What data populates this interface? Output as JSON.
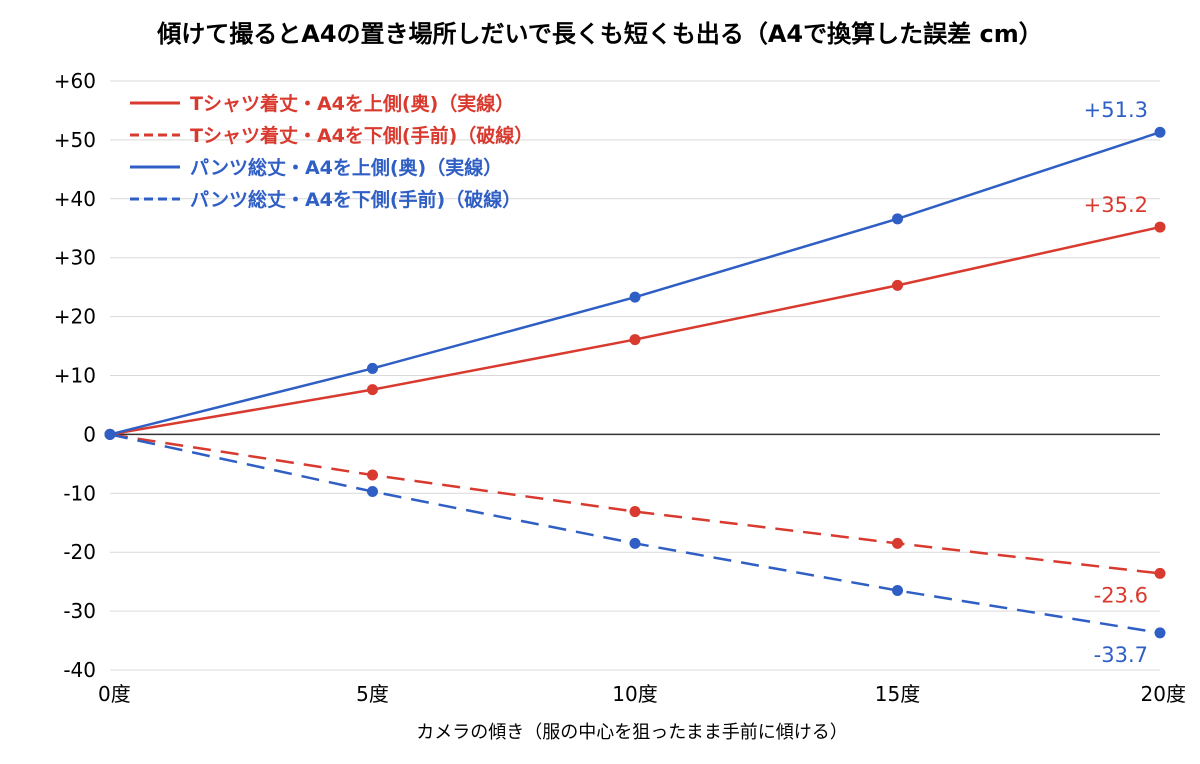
{
  "chart_data": {
    "type": "line",
    "title": "傾けて撮るとA4の置き場所しだいで長くも短くも出る（A4で換算した誤差 cm）",
    "xlabel": "カメラの傾き（服の中心を狙ったまま手前に傾ける）",
    "ylabel": "",
    "x": [
      0,
      5,
      10,
      15,
      20
    ],
    "x_tick_labels": [
      "0度",
      "5度",
      "10度",
      "15度",
      "20度"
    ],
    "ylim": [
      -40,
      60
    ],
    "y_ticks": [
      60,
      50,
      40,
      30,
      20,
      10,
      0,
      -10,
      -20,
      -30,
      -40
    ],
    "y_tick_labels": [
      "+60",
      "+50",
      "+40",
      "+30",
      "+20",
      "+10",
      "0",
      "-10",
      "-20",
      "-30",
      "-40"
    ],
    "grid": true,
    "legend_position": "top-left",
    "series": [
      {
        "name": "Tシャツ着丈・A4を上側(奥)（実線）",
        "color": "#d93a2f",
        "dashed": false,
        "values": [
          0,
          7.6,
          16.1,
          25.3,
          35.2
        ],
        "end_label": "+35.2"
      },
      {
        "name": "Tシャツ着丈・A4を下側(手前)（破線）",
        "color": "#d93a2f",
        "dashed": true,
        "values": [
          0,
          -6.9,
          -13.1,
          -18.5,
          -23.6
        ],
        "end_label": "-23.6"
      },
      {
        "name": "パンツ総丈・A4を上側(奥)（実線）",
        "color": "#2f5fc4",
        "dashed": false,
        "values": [
          0,
          11.2,
          23.3,
          36.6,
          51.3
        ],
        "end_label": "+51.3"
      },
      {
        "name": "パンツ総丈・A4を下側(手前)（破線）",
        "color": "#2f5fc4",
        "dashed": true,
        "values": [
          0,
          -9.7,
          -18.5,
          -26.5,
          -33.7
        ],
        "end_label": "-33.7"
      }
    ]
  }
}
